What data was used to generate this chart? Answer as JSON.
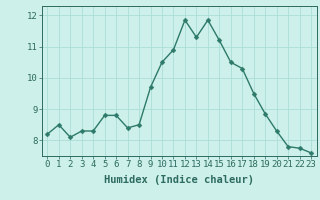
{
  "x": [
    0,
    1,
    2,
    3,
    4,
    5,
    6,
    7,
    8,
    9,
    10,
    11,
    12,
    13,
    14,
    15,
    16,
    17,
    18,
    19,
    20,
    21,
    22,
    23
  ],
  "y": [
    8.2,
    8.5,
    8.1,
    8.3,
    8.3,
    8.8,
    8.8,
    8.4,
    8.5,
    9.7,
    10.5,
    10.9,
    11.85,
    11.3,
    11.85,
    11.2,
    10.5,
    10.3,
    9.5,
    8.85,
    8.3,
    7.8,
    7.75,
    7.6
  ],
  "bg_color": "#cdf0ea",
  "grid_color": "#aaddd6",
  "line_color": "#2d7a6a",
  "marker_color": "#2d7a6a",
  "xlabel": "Humidex (Indice chaleur)",
  "xlabel_fontsize": 7.5,
  "tick_fontsize": 6.5,
  "ylim": [
    7.5,
    12.3
  ],
  "xlim": [
    -0.5,
    23.5
  ],
  "yticks": [
    8,
    9,
    10,
    11,
    12
  ],
  "xticks": [
    0,
    1,
    2,
    3,
    4,
    5,
    6,
    7,
    8,
    9,
    10,
    11,
    12,
    13,
    14,
    15,
    16,
    17,
    18,
    19,
    20,
    21,
    22,
    23
  ],
  "line_width": 1.0,
  "marker_size": 2.5,
  "tick_color": "#2d6b5e",
  "label_color": "#2d6b5e"
}
